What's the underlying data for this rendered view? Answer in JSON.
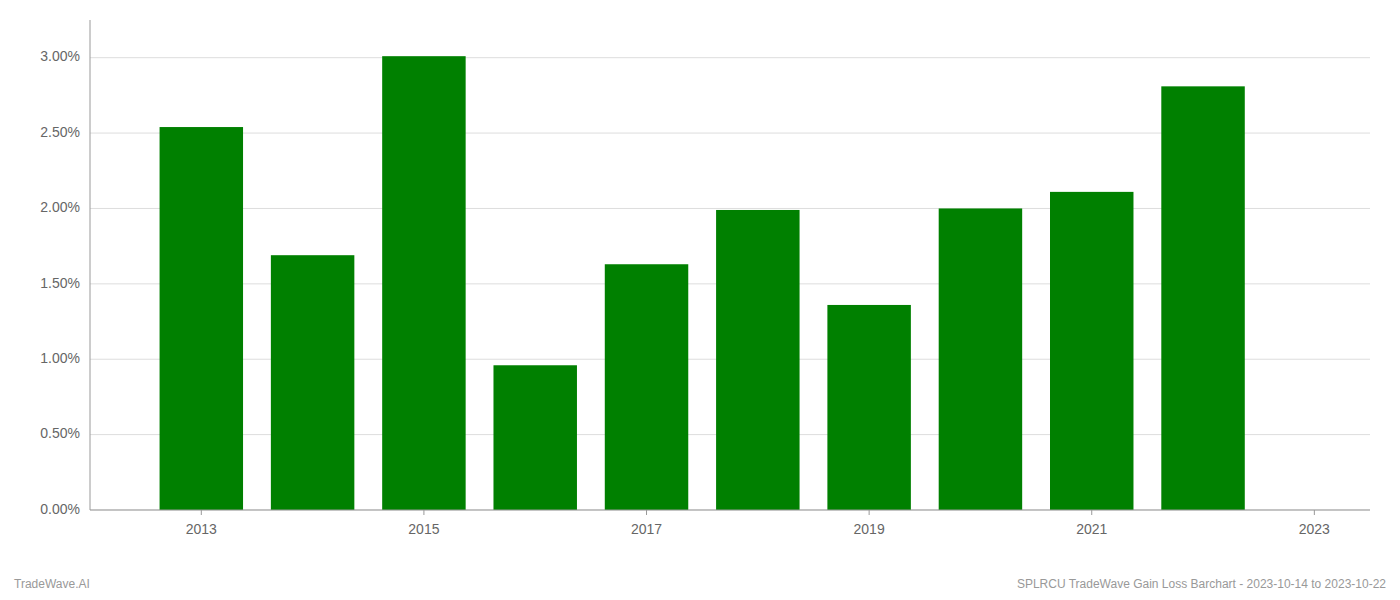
{
  "chart_data": {
    "type": "bar",
    "x": [
      2013,
      2014,
      2015,
      2016,
      2017,
      2018,
      2019,
      2020,
      2021,
      2022
    ],
    "values": [
      0.0254,
      0.0169,
      0.0301,
      0.0096,
      0.0163,
      0.0199,
      0.0136,
      0.02,
      0.0211,
      0.0281
    ],
    "color": "#008000",
    "xlim": [
      2012.0,
      2023.5
    ],
    "xticks": [
      2013,
      2015,
      2017,
      2019,
      2021,
      2023
    ],
    "ylim": [
      0,
      0.0325
    ],
    "yticks": [
      {
        "value": 0.0,
        "label": "0.00%"
      },
      {
        "value": 0.005,
        "label": "0.50%"
      },
      {
        "value": 0.01,
        "label": "1.00%"
      },
      {
        "value": 0.015,
        "label": "1.50%"
      },
      {
        "value": 0.02,
        "label": "2.00%"
      },
      {
        "value": 0.025,
        "label": "2.50%"
      },
      {
        "value": 0.03,
        "label": "3.00%"
      }
    ],
    "grid": true,
    "annotations": [
      "TradeWave.AI",
      "SPLRCU TradeWave Gain Loss Barchart - 2023-10-14 to 2023-10-22"
    ]
  }
}
